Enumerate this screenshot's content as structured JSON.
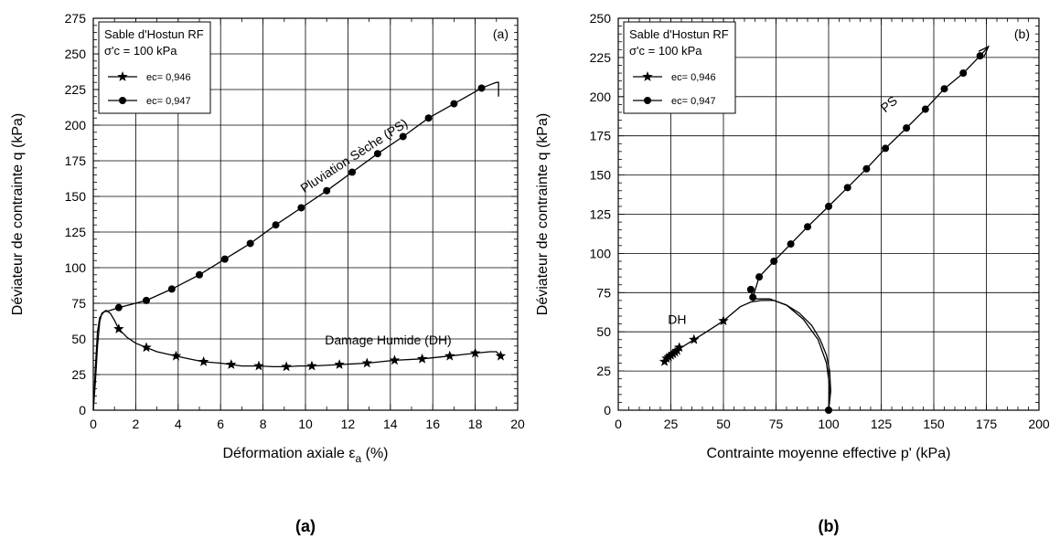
{
  "chart_data": [
    {
      "type": "line",
      "panel_label": "(a)",
      "caption": "(a)",
      "xlabel_main": "Déformation axiale ε",
      "xlabel_sub": "a",
      "xlabel_end": " (%)",
      "ylabel": "Déviateur de contrainte q (kPa)",
      "xlim": [
        0,
        20
      ],
      "ylim": [
        0,
        275
      ],
      "xticks": [
        0,
        2,
        4,
        6,
        8,
        10,
        12,
        14,
        16,
        18,
        20
      ],
      "yticks": [
        0,
        25,
        50,
        75,
        100,
        125,
        150,
        175,
        200,
        225,
        250,
        275
      ],
      "grid": true,
      "legend": {
        "placement": "top-left",
        "title_line1": "Sable d'Hostun RF",
        "title_line2": "σ'c = 100 kPa",
        "entries": [
          "ec= 0,946",
          "ec= 0,947"
        ]
      },
      "annotations": [
        "Pluviation Sèche (PS)",
        "Damage Humide (DH)"
      ],
      "series": [
        {
          "name": "ec= 0,946",
          "marker": "star",
          "x": [
            0,
            0.1,
            0.2,
            0.3,
            0.4,
            0.6,
            0.8,
            1.0,
            1.2,
            1.6,
            2.0,
            2.5,
            3.0,
            3.9,
            4.5,
            5.2,
            6.0,
            6.5,
            7.0,
            7.8,
            8.5,
            9.1,
            9.7,
            10.3,
            11.6,
            12.9,
            14.2,
            15.5,
            16.8,
            18.0,
            18.7,
            19.0,
            19.2
          ],
          "y": [
            0,
            20,
            45,
            62,
            68,
            70,
            68,
            63,
            57,
            51,
            47,
            44,
            41,
            38,
            36,
            34,
            33,
            32,
            31,
            31,
            30.5,
            30.5,
            31,
            31,
            32,
            33,
            35,
            36,
            38,
            40,
            41,
            41,
            38
          ],
          "marker_points": [
            [
              1.2,
              57
            ],
            [
              2.5,
              44
            ],
            [
              3.9,
              38
            ],
            [
              5.2,
              34
            ],
            [
              6.5,
              32
            ],
            [
              7.8,
              31
            ],
            [
              9.1,
              30.5
            ],
            [
              10.3,
              31
            ],
            [
              11.6,
              32
            ],
            [
              12.9,
              33
            ],
            [
              14.2,
              35
            ],
            [
              15.5,
              36
            ],
            [
              16.8,
              38
            ],
            [
              18.0,
              40
            ],
            [
              19.2,
              38
            ]
          ]
        },
        {
          "name": "ec= 0,947",
          "marker": "circle",
          "x": [
            0,
            0.1,
            0.2,
            0.3,
            0.5,
            0.8,
            1.2,
            2.5,
            3.7,
            5.0,
            6.2,
            7.4,
            8.6,
            9.8,
            11.0,
            12.2,
            13.4,
            14.6,
            15.8,
            17.0,
            18.3,
            18.8,
            19.0,
            19.1,
            19.1
          ],
          "y": [
            0,
            30,
            55,
            65,
            69,
            70,
            72,
            77,
            85,
            95,
            106,
            117,
            130,
            142,
            154,
            167,
            180,
            192,
            205,
            215,
            226,
            229,
            230,
            230,
            220
          ],
          "marker_points": [
            [
              1.2,
              72
            ],
            [
              2.5,
              77
            ],
            [
              3.7,
              85
            ],
            [
              5.0,
              95
            ],
            [
              6.2,
              106
            ],
            [
              7.4,
              117
            ],
            [
              8.6,
              130
            ],
            [
              9.8,
              142
            ],
            [
              11.0,
              154
            ],
            [
              12.2,
              167
            ],
            [
              13.4,
              180
            ],
            [
              14.6,
              192
            ],
            [
              15.8,
              205
            ],
            [
              17.0,
              215
            ],
            [
              18.3,
              226
            ]
          ]
        }
      ]
    },
    {
      "type": "line",
      "panel_label": "(b)",
      "caption": "(b)",
      "xlabel": "Contrainte moyenne effective  p' (kPa)",
      "ylabel": "Déviateur de contrainte q (kPa)",
      "xlim": [
        0,
        200
      ],
      "ylim": [
        0,
        250
      ],
      "xticks": [
        0,
        25,
        50,
        75,
        100,
        125,
        150,
        175,
        200
      ],
      "yticks": [
        0,
        25,
        50,
        75,
        100,
        125,
        150,
        175,
        200,
        225,
        250
      ],
      "grid": true,
      "legend": {
        "placement": "top-left",
        "title_line1": "Sable d'Hostun RF",
        "title_line2": "σ'c = 100 kPa",
        "entries": [
          "ec= 0,946",
          "ec= 0,947"
        ]
      },
      "annotations": [
        "PS",
        "DH"
      ],
      "series": [
        {
          "name": "ec= 0,946",
          "marker": "star",
          "x": [
            100,
            101,
            100.5,
            99,
            96,
            92,
            86,
            80,
            74,
            68,
            63,
            58,
            50,
            42,
            36,
            30,
            28,
            26,
            24,
            22
          ],
          "y": [
            0,
            12,
            25,
            35,
            45,
            54,
            62,
            67,
            70,
            70,
            69,
            66,
            57,
            50,
            45,
            40,
            38,
            36,
            34,
            31
          ],
          "marker_points": [
            [
              50,
              57
            ],
            [
              36,
              45
            ],
            [
              29,
              40
            ],
            [
              28,
              38
            ],
            [
              27,
              37
            ],
            [
              26,
              36
            ],
            [
              25,
              35
            ],
            [
              24,
              34
            ],
            [
              23,
              33
            ],
            [
              22,
              31
            ]
          ]
        },
        {
          "name": "ec= 0,947",
          "marker": "circle",
          "x": [
            100,
            100.5,
            99,
            95,
            88,
            80,
            72,
            66,
            64,
            63,
            64,
            67,
            74,
            82,
            90,
            100,
            109,
            118,
            127,
            137,
            146,
            155,
            164,
            172,
            176
          ],
          "y": [
            0,
            15,
            30,
            45,
            58,
            67,
            71,
            71,
            71,
            77,
            72,
            85,
            95,
            106,
            117,
            130,
            142,
            154,
            167,
            180,
            192,
            205,
            215,
            226,
            232
          ],
          "marker_points": [
            [
              100,
              0
            ],
            [
              63,
              77
            ],
            [
              64,
              72
            ],
            [
              67,
              85
            ],
            [
              74,
              95
            ],
            [
              82,
              106
            ],
            [
              90,
              117
            ],
            [
              100,
              130
            ],
            [
              109,
              142
            ],
            [
              118,
              154
            ],
            [
              127,
              167
            ],
            [
              137,
              180
            ],
            [
              146,
              192
            ],
            [
              155,
              205
            ],
            [
              164,
              215
            ],
            [
              172,
              226
            ]
          ]
        }
      ]
    }
  ]
}
